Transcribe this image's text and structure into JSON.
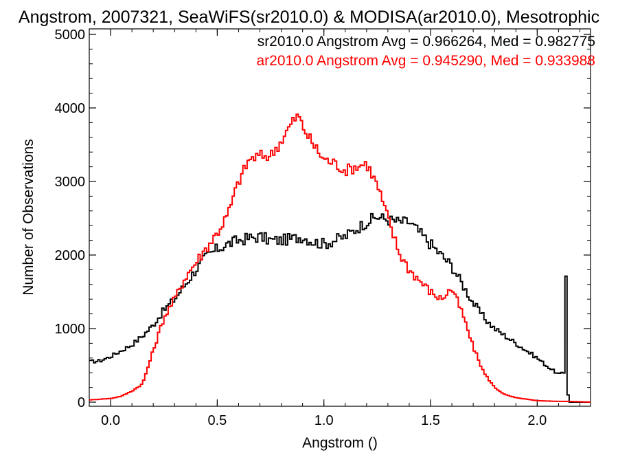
{
  "chart_data": {
    "type": "line",
    "title": "Angstrom, 2007321, SeaWiFS(sr2010.0) & MODISA(ar2010.0), Mesotrophic",
    "xlabel": "Angstrom ()",
    "ylabel": "Number of Observations",
    "xlim": [
      -0.1,
      2.25
    ],
    "ylim": [
      0,
      5000
    ],
    "x_ticks": [
      "0.0",
      "0.5",
      "1.0",
      "1.5",
      "2.0"
    ],
    "x_tick_values": [
      0.0,
      0.5,
      1.0,
      1.5,
      2.0
    ],
    "y_ticks": [
      "0",
      "1000",
      "2000",
      "3000",
      "4000",
      "5000"
    ],
    "y_tick_values": [
      0,
      1000,
      2000,
      3000,
      4000,
      5000
    ],
    "grid": false,
    "legend_position": "top-right",
    "series": [
      {
        "name": "sr2010.0",
        "color": "#000000",
        "stats_text": "sr2010.0 Angstrom Avg = 0.966264, Med = 0.982775",
        "x": [
          -0.1,
          -0.05,
          0.0,
          0.05,
          0.1,
          0.15,
          0.2,
          0.25,
          0.3,
          0.35,
          0.4,
          0.45,
          0.5,
          0.55,
          0.6,
          0.65,
          0.7,
          0.75,
          0.8,
          0.85,
          0.9,
          0.95,
          1.0,
          1.05,
          1.1,
          1.15,
          1.2,
          1.25,
          1.3,
          1.35,
          1.4,
          1.45,
          1.5,
          1.55,
          1.6,
          1.65,
          1.7,
          1.75,
          1.8,
          1.85,
          1.9,
          1.95,
          2.0,
          2.05,
          2.1,
          2.13,
          2.135,
          2.14,
          2.145,
          2.15
        ],
        "y": [
          550,
          560,
          620,
          700,
          780,
          900,
          1050,
          1250,
          1400,
          1600,
          1800,
          1980,
          2080,
          2150,
          2200,
          2230,
          2250,
          2200,
          2200,
          2220,
          2250,
          2180,
          2150,
          2200,
          2250,
          2350,
          2450,
          2520,
          2480,
          2450,
          2450,
          2300,
          2150,
          2000,
          1850,
          1600,
          1350,
          1150,
          1000,
          900,
          800,
          700,
          600,
          480,
          380,
          400,
          1750,
          500,
          100,
          0
        ]
      },
      {
        "name": "ar2010.0",
        "color": "#ff0000",
        "stats_text": "ar2010.0 Angstrom Avg = 0.945290, Med = 0.933988",
        "x": [
          -0.1,
          -0.05,
          0.0,
          0.05,
          0.1,
          0.15,
          0.2,
          0.25,
          0.3,
          0.35,
          0.4,
          0.45,
          0.5,
          0.55,
          0.6,
          0.65,
          0.7,
          0.75,
          0.8,
          0.85,
          0.88,
          0.9,
          0.95,
          1.0,
          1.05,
          1.1,
          1.15,
          1.2,
          1.25,
          1.3,
          1.35,
          1.4,
          1.45,
          1.5,
          1.55,
          1.6,
          1.65,
          1.7,
          1.75,
          1.8,
          1.85,
          1.9,
          1.95,
          2.0,
          2.05,
          2.1,
          2.15,
          2.2,
          2.25
        ],
        "y": [
          30,
          40,
          50,
          80,
          150,
          250,
          700,
          1150,
          1400,
          1700,
          1900,
          2100,
          2300,
          2550,
          3000,
          3300,
          3350,
          3350,
          3550,
          3800,
          3900,
          3750,
          3500,
          3300,
          3250,
          3150,
          3200,
          3250,
          2950,
          2500,
          2050,
          1800,
          1650,
          1500,
          1400,
          1550,
          1200,
          750,
          400,
          200,
          100,
          60,
          40,
          20,
          15,
          10,
          10,
          5,
          0
        ]
      }
    ]
  }
}
